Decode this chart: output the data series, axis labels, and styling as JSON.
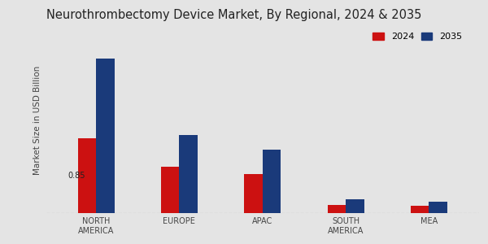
{
  "title": "Neurothrombectomy Device Market, By Regional, 2024 & 2035",
  "categories": [
    "NORTH\nAMERICA",
    "EUROPE",
    "APAC",
    "SOUTH\nAMERICA",
    "MEA"
  ],
  "values_2024": [
    0.85,
    0.52,
    0.44,
    0.09,
    0.08
  ],
  "values_2035": [
    1.75,
    0.88,
    0.72,
    0.15,
    0.13
  ],
  "color_2024": "#cc1111",
  "color_2035": "#1a3a7a",
  "ylabel": "Market Size in USD Billion",
  "legend_labels": [
    "2024",
    "2035"
  ],
  "annotation_text": "0.85",
  "background_color": "#e4e4e4",
  "bar_width": 0.22,
  "ylim": [
    0,
    2.1
  ],
  "title_fontsize": 10.5,
  "axis_label_fontsize": 7.5,
  "tick_fontsize": 7.0,
  "legend_fontsize": 8.0
}
